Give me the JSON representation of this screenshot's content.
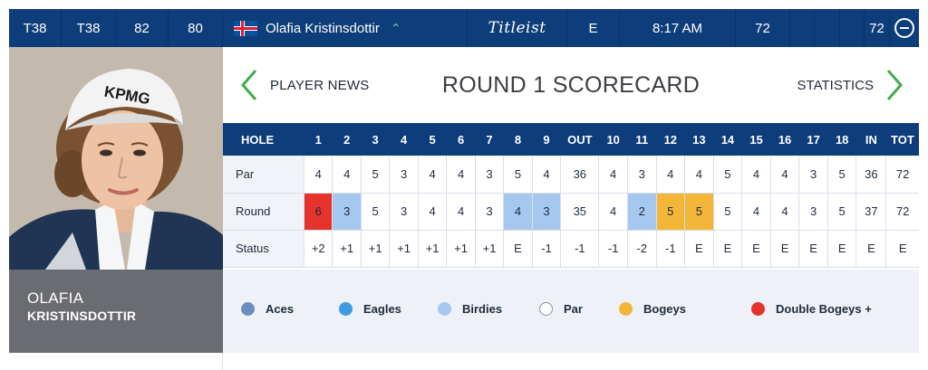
{
  "topbar": {
    "pos_today": "T38",
    "pos_total": "T38",
    "score_a": "82",
    "score_b": "80",
    "player_name": "Olafia Kristinsdottir",
    "brand": "Titleist",
    "to_par": "E",
    "tee_time": "8:17 AM",
    "thru_a": "72",
    "thru_b": "72"
  },
  "player": {
    "first": "OLAFIA",
    "last": "KRISTINSDOTTIR"
  },
  "header": {
    "left_nav": "PLAYER NEWS",
    "title": "ROUND 1 SCORECARD",
    "right_nav": "STATISTICS"
  },
  "scorecard": {
    "columns": [
      "HOLE",
      "1",
      "2",
      "3",
      "4",
      "5",
      "6",
      "7",
      "8",
      "9",
      "OUT",
      "10",
      "11",
      "12",
      "13",
      "14",
      "15",
      "16",
      "17",
      "18",
      "IN",
      "TOT"
    ],
    "rows": [
      {
        "label": "Par",
        "values": [
          "4",
          "4",
          "5",
          "3",
          "4",
          "4",
          "3",
          "5",
          "4",
          "36",
          "4",
          "3",
          "4",
          "4",
          "5",
          "4",
          "4",
          "3",
          "5",
          "36",
          "72"
        ]
      },
      {
        "label": "Round",
        "values": [
          "6",
          "3",
          "5",
          "3",
          "4",
          "4",
          "3",
          "4",
          "3",
          "35",
          "4",
          "2",
          "5",
          "5",
          "5",
          "4",
          "4",
          "3",
          "5",
          "37",
          "72"
        ]
      },
      {
        "label": "Status",
        "values": [
          "+2",
          "+1",
          "+1",
          "+1",
          "+1",
          "+1",
          "+1",
          "E",
          "-1",
          "-1",
          "-1",
          "-2",
          "-1",
          "E",
          "E",
          "E",
          "E",
          "E",
          "E",
          "E",
          "E"
        ]
      }
    ],
    "round_classes": [
      "dbl",
      "birdie",
      "",
      "",
      "",
      "",
      "",
      "birdie",
      "birdie",
      "",
      "",
      "birdie",
      "bogey",
      "bogey",
      "",
      "",
      "",
      "",
      "",
      "",
      ""
    ]
  },
  "legend": [
    {
      "label": "Aces",
      "color": "#6b8fbd"
    },
    {
      "label": "Eagles",
      "color": "#3e9be3"
    },
    {
      "label": "Birdies",
      "color": "#a6c8f0"
    },
    {
      "label": "Par",
      "color": "#ffffff"
    },
    {
      "label": "Bogeys",
      "color": "#f3b638"
    },
    {
      "label": "Double Bogeys +",
      "color": "#e5332c"
    }
  ],
  "colors": {
    "header_blue": "#0d3d7a",
    "nav_green": "#3fae49",
    "namecard_gray": "#6a6c72"
  }
}
